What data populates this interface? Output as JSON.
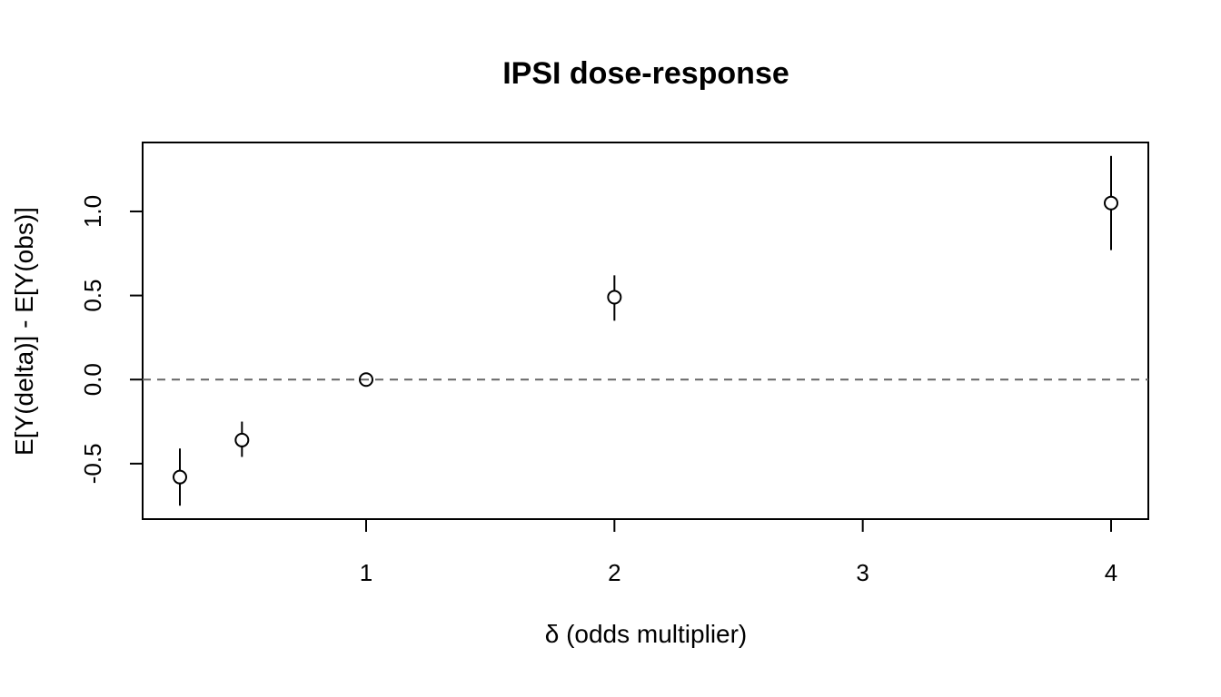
{
  "chart_data": {
    "type": "scatter",
    "title": "IPSI dose-response",
    "xlabel": "δ (odds multiplier)",
    "ylabel": "E[Y(delta)] - E[Y(obs)]",
    "xlim": [
      0.1,
      4.15
    ],
    "ylim": [
      -0.83,
      1.41
    ],
    "x_ticks": [
      1,
      2,
      3,
      4
    ],
    "y_ticks": [
      -0.5,
      0.0,
      0.5,
      1.0
    ],
    "x_tick_labels": [
      "1",
      "2",
      "3",
      "4"
    ],
    "y_tick_labels": [
      "-0.5",
      "0.0",
      "0.5",
      "1.0"
    ],
    "reference_line": {
      "y": 0,
      "style": "dashed",
      "color": "#666666"
    },
    "points": [
      {
        "x": 0.25,
        "y": -0.58,
        "lower": -0.75,
        "upper": -0.41
      },
      {
        "x": 0.5,
        "y": -0.36,
        "lower": -0.46,
        "upper": -0.25
      },
      {
        "x": 1,
        "y": 0.0,
        "lower": 0.0,
        "upper": 0.0
      },
      {
        "x": 2,
        "y": 0.49,
        "lower": 0.35,
        "upper": 0.62
      },
      {
        "x": 4,
        "y": 1.05,
        "lower": 0.77,
        "upper": 1.33
      }
    ],
    "grid": false,
    "marker": "open-circle",
    "color": "#000000"
  }
}
